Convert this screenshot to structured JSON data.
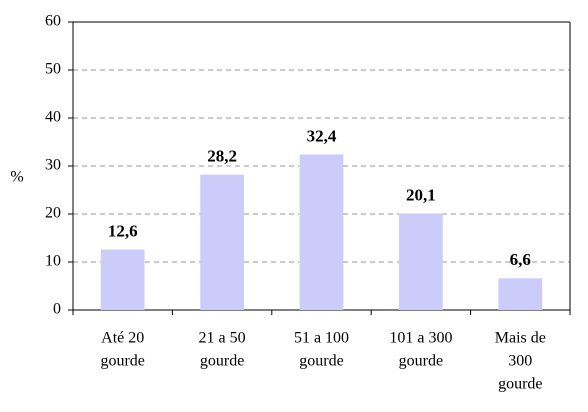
{
  "chart_data": {
    "type": "bar",
    "y_label": "%",
    "categories": [
      [
        "Até 20",
        "gourde"
      ],
      [
        "21 a 50",
        "gourde"
      ],
      [
        "51 a 100",
        "gourde"
      ],
      [
        "101 a 300",
        "gourde"
      ],
      [
        "Mais de",
        "300",
        "gourde"
      ]
    ],
    "values": [
      12.6,
      28.2,
      32.4,
      20.1,
      6.6
    ],
    "value_labels": [
      "12,6",
      "28,2",
      "32,4",
      "20,1",
      "6,6"
    ],
    "color": "#ccccfa",
    "ylim": [
      0,
      60
    ],
    "yticks": [
      0,
      10,
      20,
      30,
      40,
      50,
      60
    ],
    "grid": true
  }
}
